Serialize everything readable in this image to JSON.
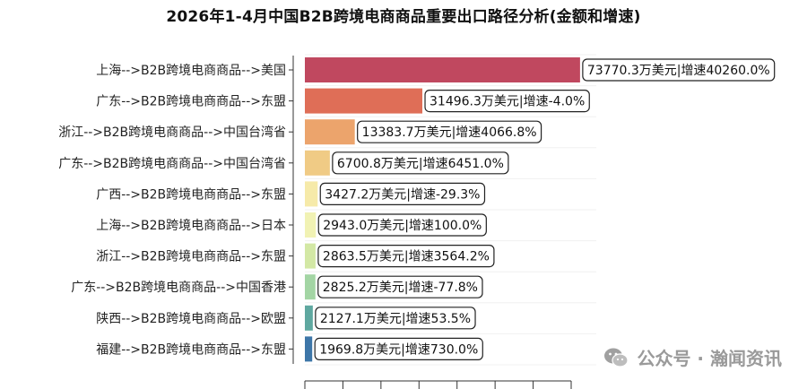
{
  "chart_data": {
    "type": "bar",
    "orientation": "horizontal",
    "title": "2026年1-4月中国B2B跨境电商商品重要出口路径分析(金额和增速)",
    "categories": [
      "上海-->B2B跨境电商商品-->美国",
      "广东-->B2B跨境电商商品-->东盟",
      "浙江-->B2B跨境电商商品-->中国台湾省",
      "广东-->B2B跨境电商商品-->中国台湾省",
      "广西-->B2B跨境电商商品-->东盟",
      "上海-->B2B跨境电商商品-->日本",
      "浙江-->B2B跨境电商商品-->东盟",
      "广东-->B2B跨境电商商品-->中国香港",
      "陕西-->B2B跨境电商商品-->欧盟",
      "福建-->B2B跨境电商商品-->东盟"
    ],
    "values": [
      73770.3,
      31496.3,
      13383.7,
      6700.8,
      3427.2,
      2943.0,
      2863.5,
      2825.2,
      2127.1,
      1969.8
    ],
    "growth": [
      40260.0,
      -4.0,
      4066.8,
      6451.0,
      -29.3,
      100.0,
      3564.2,
      -77.8,
      53.5,
      730.0
    ],
    "data_labels": [
      "73770.3万美元|增速40260.0%",
      "31496.3万美元|增速-4.0%",
      "13383.7万美元|增速4066.8%",
      "6700.8万美元|增速6451.0%",
      "3427.2万美元|增速-29.3%",
      "2943.0万美元|增速100.0%",
      "2863.5万美元|增速3564.2%",
      "2825.2万美元|增速-77.8%",
      "2127.1万美元|增速53.5%",
      "1969.8万美元|增速730.0%"
    ],
    "colors": [
      "#c0485f",
      "#df6e57",
      "#eca46c",
      "#f0cb85",
      "#f6eaa9",
      "#f1f2b4",
      "#d3e8a5",
      "#a3d5a4",
      "#5fa8a0",
      "#3d76a8"
    ],
    "xlim": [
      0,
      75000
    ],
    "grid": true,
    "legend": "none"
  },
  "watermark": {
    "text": "公众号 · 瀚闻资讯",
    "icon": "wechat-icon"
  }
}
